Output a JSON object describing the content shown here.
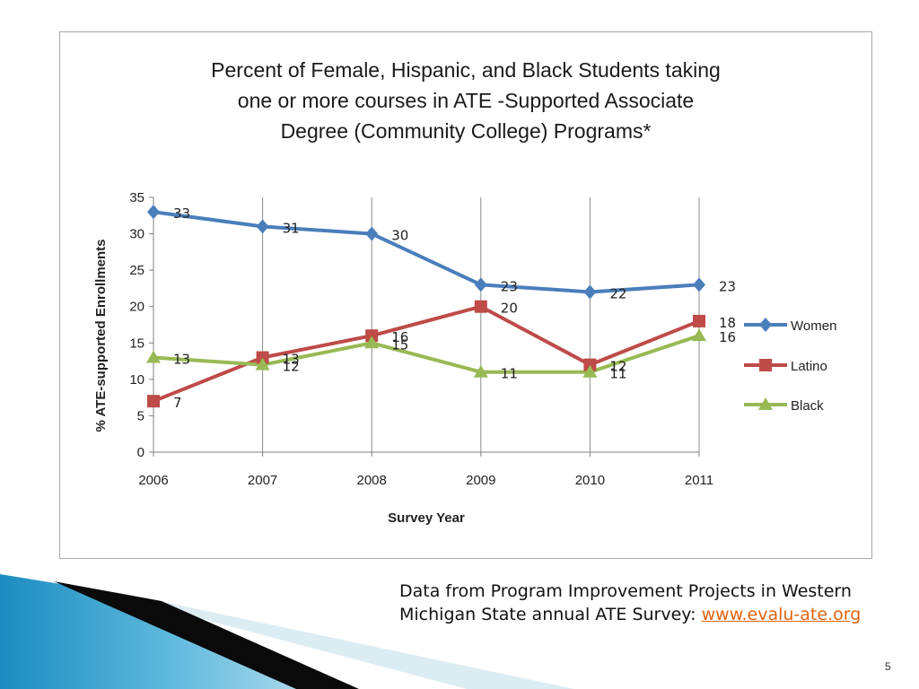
{
  "chart_data": {
    "type": "line",
    "title_lines": [
      "Percent of  Female, Hispanic, and Black Students taking",
      "one or more courses in ATE -Supported  Associate",
      "Degree  (Community College) Programs*"
    ],
    "xlabel": "Survey Year",
    "ylabel": "% ATE-supported  Enrollments",
    "x": [
      "2006",
      "2007",
      "2008",
      "2009",
      "2010",
      "2011"
    ],
    "ylim": [
      0,
      35
    ],
    "yticks": [
      0,
      5,
      10,
      15,
      20,
      25,
      30,
      35
    ],
    "grid": "vertical",
    "legend_position": "right",
    "series": [
      {
        "name": "Women",
        "values": [
          33,
          31,
          30,
          23,
          22,
          23
        ],
        "color": "#4a7ebb",
        "marker": "diamond"
      },
      {
        "name": "Latino",
        "values": [
          7,
          13,
          16,
          20,
          12,
          18
        ],
        "color": "#be4b48",
        "marker": "square"
      },
      {
        "name": "Black",
        "values": [
          13,
          12,
          15,
          11,
          11,
          16
        ],
        "color": "#98b954",
        "marker": "triangle"
      }
    ]
  },
  "source": {
    "text": "Data from Program Improvement Projects in Western Michigan State  annual ATE Survey:",
    "link": "www.evalu-ate.org"
  },
  "slide_number": "5"
}
